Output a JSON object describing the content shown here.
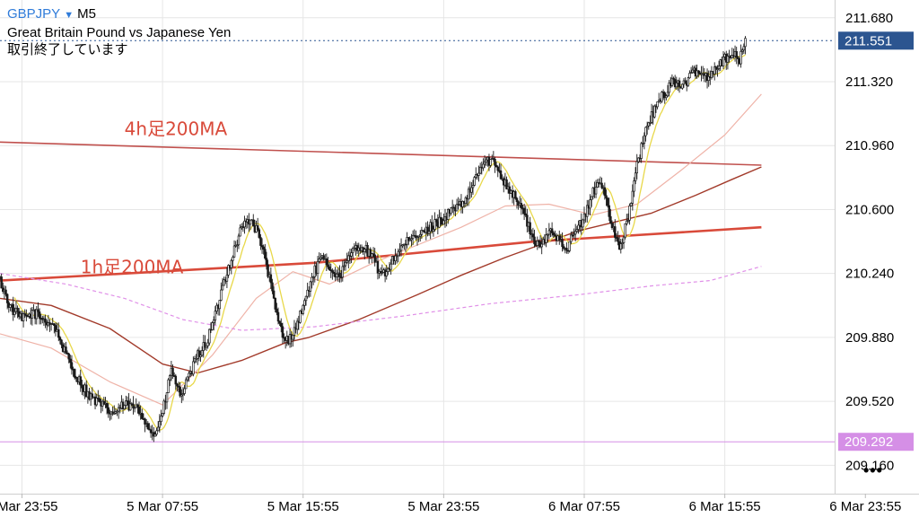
{
  "header": {
    "symbol": "GBPJPY",
    "timeframe": "M5",
    "description": "Great Britain Pound vs Japanese Yen",
    "status": "取引終了しています"
  },
  "colors": {
    "grid": "#e6e6e6",
    "candle": "#1a1a1a",
    "ma_4h": "#c0504d",
    "ma_1h": "#d94a3a",
    "ma_dark": "#a23a2a",
    "ma_yellow": "#e8d84a",
    "ma_pink": "#efb3a8",
    "ma_violet": "#e090e8",
    "price_tag": "#2c5590",
    "violet_tag": "#d58fe6",
    "annotation": "#d94a3a"
  },
  "chart_data": {
    "type": "candlestick",
    "instrument": "GBPJPY",
    "timeframe": "M5",
    "y_axis": {
      "range": [
        209.0,
        211.78
      ],
      "ticks": [
        211.68,
        211.32,
        210.96,
        210.6,
        210.24,
        209.88,
        209.52,
        209.16
      ],
      "tick_labels": [
        "211.680",
        "211.320",
        "210.960",
        "210.600",
        "210.240",
        "209.880",
        "209.520",
        "209.160"
      ]
    },
    "x_axis": {
      "ticks": [
        {
          "label": "4 Mar 23:55",
          "index": 0
        },
        {
          "label": "5 Mar 07:55",
          "index": 96
        },
        {
          "label": "5 Mar 15:55",
          "index": 192
        },
        {
          "label": "5 Mar 23:55",
          "index": 288
        },
        {
          "label": "6 Mar 07:55",
          "index": 384
        },
        {
          "label": "6 Mar 15:55",
          "index": 480
        },
        {
          "label": "6 Mar 23:55",
          "index": 576
        }
      ],
      "bars_visible": [
        -15,
        555
      ]
    },
    "price_levels": [
      {
        "name": "current",
        "value": 211.551,
        "label": "211.551",
        "style": "dotted"
      },
      {
        "name": "level",
        "value": 209.292,
        "label": "209.292",
        "style": "solid"
      }
    ],
    "annotations": [
      {
        "text": "4h足200MA",
        "x_index": 70,
        "y": 210.98
      },
      {
        "text": "1h足200MA",
        "x_index": 40,
        "y": 210.2
      }
    ],
    "close_path": [
      [
        -15,
        210.2
      ],
      [
        -8,
        210.05
      ],
      [
        0,
        209.98
      ],
      [
        8,
        210.02
      ],
      [
        15,
        209.98
      ],
      [
        22,
        209.95
      ],
      [
        30,
        209.78
      ],
      [
        38,
        209.65
      ],
      [
        46,
        209.55
      ],
      [
        54,
        209.5
      ],
      [
        62,
        209.45
      ],
      [
        70,
        209.5
      ],
      [
        78,
        209.48
      ],
      [
        84,
        209.42
      ],
      [
        90,
        209.32
      ],
      [
        96,
        209.45
      ],
      [
        102,
        209.7
      ],
      [
        108,
        209.55
      ],
      [
        114,
        209.65
      ],
      [
        120,
        209.78
      ],
      [
        126,
        209.85
      ],
      [
        132,
        210.0
      ],
      [
        138,
        210.2
      ],
      [
        144,
        210.35
      ],
      [
        150,
        210.5
      ],
      [
        156,
        210.55
      ],
      [
        162,
        210.45
      ],
      [
        168,
        210.25
      ],
      [
        174,
        210.0
      ],
      [
        180,
        209.85
      ],
      [
        186,
        209.92
      ],
      [
        192,
        210.05
      ],
      [
        198,
        210.22
      ],
      [
        204,
        210.32
      ],
      [
        210,
        210.28
      ],
      [
        216,
        210.22
      ],
      [
        222,
        210.3
      ],
      [
        228,
        210.4
      ],
      [
        234,
        210.38
      ],
      [
        240,
        210.32
      ],
      [
        246,
        210.22
      ],
      [
        252,
        210.3
      ],
      [
        258,
        210.38
      ],
      [
        264,
        210.42
      ],
      [
        270,
        210.45
      ],
      [
        276,
        210.48
      ],
      [
        282,
        210.52
      ],
      [
        288,
        210.55
      ],
      [
        294,
        210.6
      ],
      [
        300,
        210.62
      ],
      [
        306,
        210.7
      ],
      [
        312,
        210.82
      ],
      [
        318,
        210.88
      ],
      [
        324,
        210.85
      ],
      [
        330,
        210.75
      ],
      [
        336,
        210.68
      ],
      [
        342,
        210.6
      ],
      [
        348,
        210.45
      ],
      [
        354,
        210.38
      ],
      [
        360,
        210.48
      ],
      [
        366,
        210.45
      ],
      [
        372,
        210.38
      ],
      [
        378,
        210.48
      ],
      [
        384,
        210.55
      ],
      [
        390,
        210.7
      ],
      [
        396,
        210.75
      ],
      [
        402,
        210.55
      ],
      [
        408,
        210.38
      ],
      [
        414,
        210.55
      ],
      [
        420,
        210.85
      ],
      [
        428,
        211.1
      ],
      [
        436,
        211.22
      ],
      [
        444,
        211.32
      ],
      [
        452,
        211.3
      ],
      [
        460,
        211.38
      ],
      [
        468,
        211.35
      ],
      [
        476,
        211.42
      ],
      [
        484,
        211.48
      ],
      [
        490,
        211.44
      ],
      [
        494,
        211.55
      ]
    ],
    "series": [
      {
        "name": "4h足200MA",
        "color": "#c0504d",
        "width": 1.6,
        "points": [
          [
            -15,
            210.98
          ],
          [
            505,
            210.85
          ]
        ]
      },
      {
        "name": "1h足200MA",
        "color": "#d94a3a",
        "width": 2.6,
        "points": [
          [
            -15,
            210.2
          ],
          [
            200,
            210.3
          ],
          [
            350,
            210.42
          ],
          [
            505,
            210.5
          ]
        ]
      },
      {
        "color": "#a23a2a",
        "width": 1.4,
        "points": [
          [
            -15,
            210.1
          ],
          [
            20,
            210.06
          ],
          [
            60,
            209.93
          ],
          [
            96,
            209.73
          ],
          [
            120,
            209.68
          ],
          [
            150,
            209.75
          ],
          [
            180,
            209.85
          ],
          [
            196,
            209.88
          ],
          [
            230,
            209.98
          ],
          [
            270,
            210.12
          ],
          [
            300,
            210.23
          ],
          [
            330,
            210.33
          ],
          [
            360,
            210.42
          ],
          [
            380,
            210.48
          ],
          [
            400,
            210.52
          ],
          [
            430,
            210.58
          ],
          [
            460,
            210.68
          ],
          [
            485,
            210.77
          ],
          [
            505,
            210.84
          ]
        ]
      },
      {
        "color": "#efb3a8",
        "width": 1.2,
        "points": [
          [
            -15,
            209.9
          ],
          [
            20,
            209.82
          ],
          [
            60,
            209.63
          ],
          [
            96,
            209.5
          ],
          [
            130,
            209.78
          ],
          [
            160,
            210.1
          ],
          [
            185,
            210.25
          ],
          [
            210,
            210.18
          ],
          [
            240,
            210.3
          ],
          [
            270,
            210.4
          ],
          [
            300,
            210.5
          ],
          [
            330,
            210.62
          ],
          [
            360,
            210.63
          ],
          [
            390,
            210.57
          ],
          [
            420,
            210.63
          ],
          [
            450,
            210.82
          ],
          [
            480,
            211.02
          ],
          [
            505,
            211.25
          ]
        ]
      },
      {
        "color": "#e090e8",
        "width": 1.2,
        "dash": "4 3",
        "points": [
          [
            -15,
            210.24
          ],
          [
            30,
            210.18
          ],
          [
            70,
            210.1
          ],
          [
            110,
            209.98
          ],
          [
            150,
            209.92
          ],
          [
            200,
            209.94
          ],
          [
            260,
            210.0
          ],
          [
            320,
            210.07
          ],
          [
            380,
            210.12
          ],
          [
            430,
            210.17
          ],
          [
            470,
            210.2
          ],
          [
            505,
            210.28
          ]
        ]
      }
    ],
    "yellow_ma_smoothing": 10
  }
}
